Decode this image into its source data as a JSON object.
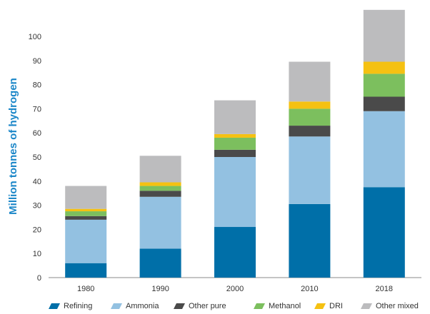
{
  "chart_data": {
    "type": "bar",
    "stacked": true,
    "categories": [
      "1980",
      "1990",
      "2000",
      "2010",
      "2018"
    ],
    "series": [
      {
        "name": "Refining",
        "color": "#006fa8",
        "values": [
          6,
          12,
          21,
          30.5,
          37.5
        ]
      },
      {
        "name": "Ammonia",
        "color": "#93c1e1",
        "values": [
          18,
          21.5,
          29,
          28,
          31.5
        ]
      },
      {
        "name": "Other pure",
        "color": "#4a4a4a",
        "values": [
          1.5,
          2.5,
          3,
          4.5,
          6
        ]
      },
      {
        "name": "Methanol",
        "color": "#7cbf5e",
        "values": [
          2,
          2,
          5,
          7,
          9.5
        ]
      },
      {
        "name": "DRI",
        "color": "#f5c112",
        "values": [
          1,
          1.5,
          1.5,
          3,
          5
        ]
      },
      {
        "name": "Other mixed",
        "color": "#bcbcbe",
        "values": [
          9.5,
          11,
          14,
          16.5,
          21.5
        ]
      }
    ],
    "title": "",
    "xlabel": "",
    "ylabel": "Million tonnes of hydrogen",
    "ylim": [
      0,
      110
    ],
    "yticks": [
      "0",
      "10",
      "20",
      "30",
      "40",
      "50",
      "60",
      "70",
      "80",
      "90",
      "100"
    ],
    "grid": false,
    "legend_position": "bottom"
  }
}
